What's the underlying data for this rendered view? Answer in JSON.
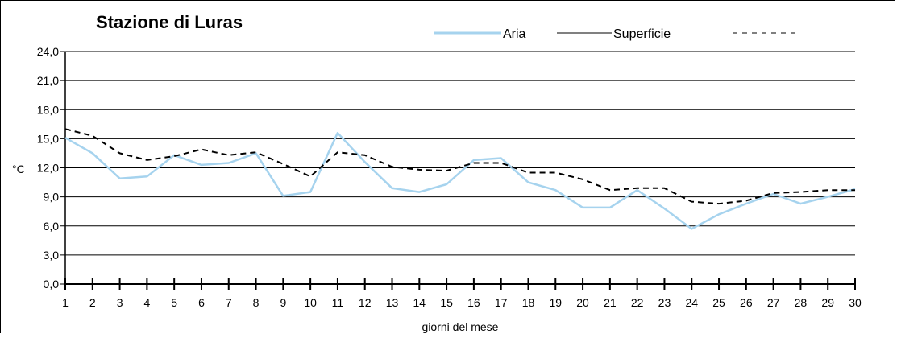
{
  "chart_data": {
    "type": "line",
    "title": "Stazione di Luras",
    "xlabel": "giorni del mese",
    "ylabel": "°C",
    "ylim": [
      0,
      24
    ],
    "yticks": [
      "0,0",
      "3,0",
      "6,0",
      "9,0",
      "12,0",
      "15,0",
      "18,0",
      "21,0",
      "24,0"
    ],
    "x": [
      1,
      2,
      3,
      4,
      5,
      6,
      7,
      8,
      9,
      10,
      11,
      12,
      13,
      14,
      15,
      16,
      17,
      18,
      19,
      20,
      21,
      22,
      23,
      24,
      25,
      26,
      27,
      28,
      29,
      30
    ],
    "xticks": [
      "1",
      "2",
      "3",
      "4",
      "5",
      "6",
      "7",
      "8",
      "9",
      "10",
      "11",
      "12",
      "13",
      "14",
      "15",
      "16",
      "17",
      "18",
      "19",
      "20",
      "21",
      "22",
      "23",
      "24",
      "25",
      "26",
      "27",
      "28",
      "29",
      "30"
    ],
    "grid": true,
    "legend_position": "top-right",
    "series": [
      {
        "name": "Aria",
        "color": "#a6d3ee",
        "style": "solid",
        "values": [
          15.1,
          13.5,
          10.9,
          11.1,
          13.3,
          12.3,
          12.5,
          13.5,
          9.1,
          9.5,
          15.6,
          12.6,
          9.9,
          9.5,
          10.3,
          12.8,
          13.0,
          10.5,
          9.7,
          7.9,
          7.9,
          9.7,
          7.8,
          5.7,
          7.2,
          8.3,
          9.3,
          8.3,
          9.0,
          9.8
        ]
      },
      {
        "name": "Superficie",
        "color": "#000000",
        "style": "solid",
        "values": null
      },
      {
        "name": "",
        "color": "#000000",
        "style": "dashed",
        "values": [
          16.0,
          15.3,
          13.5,
          12.8,
          13.2,
          13.9,
          13.3,
          13.6,
          12.4,
          11.1,
          13.6,
          13.3,
          12.1,
          11.8,
          11.7,
          12.5,
          12.5,
          11.5,
          11.5,
          10.8,
          9.7,
          9.9,
          9.9,
          8.5,
          8.3,
          8.6,
          9.4,
          9.5,
          9.7,
          9.7
        ]
      }
    ]
  }
}
